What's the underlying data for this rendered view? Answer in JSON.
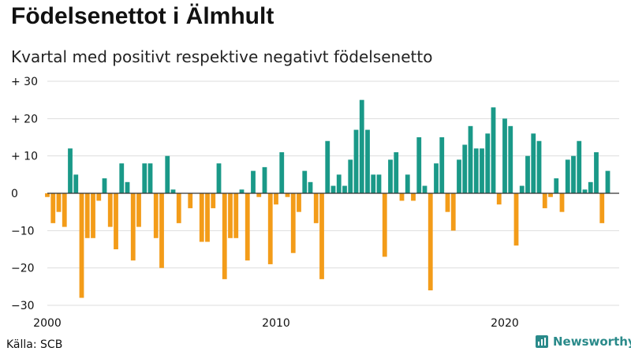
{
  "title": "Födelsenettot i Älmhult",
  "subtitle": "Kvartal med positivt respektive negativt födelsenetto",
  "source": "Källa: SCB",
  "brand": {
    "name": "Newsworthy",
    "icon": "bar-chart-icon"
  },
  "colors": {
    "positive": "#1a9988",
    "negative": "#f39c19",
    "grid": "#dddddd",
    "zero_line": "#333333"
  },
  "chart_data": {
    "type": "bar",
    "title": "Födelsenettot i Älmhult",
    "subtitle": "Kvartal med positivt respektive negativt födelsenetto",
    "x_start": 2000.0,
    "x_step": 0.25,
    "xlim": [
      2000,
      2025
    ],
    "ylim": [
      -30,
      30
    ],
    "yticks": [
      30,
      20,
      10,
      0,
      -10,
      -20,
      -30
    ],
    "ytick_labels": [
      "+ 30",
      "+ 20",
      "+ 10",
      "0",
      "−10",
      "−20",
      "−30"
    ],
    "xticks": [
      2000,
      2010,
      2020
    ],
    "xtick_labels": [
      "2000",
      "2010",
      "2020"
    ],
    "grid": true,
    "values": [
      -1,
      -8,
      -5,
      -9,
      12,
      5,
      -28,
      -12,
      -12,
      -2,
      4,
      -9,
      -15,
      8,
      3,
      -18,
      -9,
      8,
      8,
      -12,
      -20,
      10,
      1,
      -8,
      0,
      -4,
      0,
      -13,
      -13,
      -4,
      8,
      -23,
      -12,
      -12,
      1,
      -18,
      6,
      -1,
      7,
      -19,
      -3,
      11,
      -1,
      -16,
      -5,
      6,
      3,
      -8,
      -23,
      14,
      2,
      5,
      2,
      9,
      17,
      25,
      17,
      5,
      5,
      -17,
      9,
      11,
      -2,
      5,
      -2,
      15,
      2,
      -26,
      8,
      15,
      -5,
      -10,
      9,
      13,
      18,
      12,
      12,
      16,
      23,
      -3,
      20,
      18,
      -14,
      2,
      10,
      16,
      14,
      -4,
      -1,
      4,
      -5,
      9,
      10,
      14,
      1,
      3,
      11,
      -8,
      6
    ]
  }
}
